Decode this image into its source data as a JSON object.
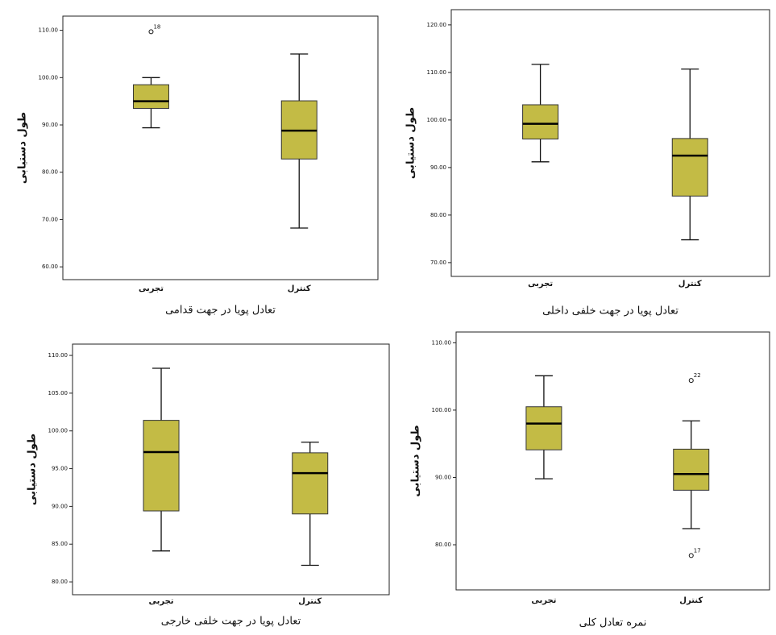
{
  "chart_data": [
    {
      "type": "box",
      "categories": [
        "تجربی",
        "کنترل"
      ],
      "x_label": "تعادل پویا در جهت قدامی",
      "y_label": "طول دستیابی",
      "ylim": [
        57.3,
        113
      ],
      "yticks": [
        {
          "value": 60,
          "label": "60.00"
        },
        {
          "value": 70,
          "label": "70.00"
        },
        {
          "value": 80,
          "label": "80.00"
        },
        {
          "value": 90,
          "label": "90.00"
        },
        {
          "value": 100,
          "label": "100.00"
        },
        {
          "value": 110,
          "label": "110.00"
        }
      ],
      "color": "#c3bb45",
      "boxes": [
        {
          "whislo": 89.4,
          "q1": 93.5,
          "med": 95,
          "q3": 98.5,
          "whishi": 100,
          "outliers": [
            {
              "value": 109.7,
              "case": "18"
            }
          ]
        },
        {
          "whislo": 68.2,
          "q1": 82.8,
          "med": 88.8,
          "q3": 95.1,
          "whishi": 105,
          "outliers": []
        }
      ]
    },
    {
      "type": "box",
      "categories": [
        "تجربی",
        "کنترل"
      ],
      "x_label": "تعادل پویا در جهت خلفی داخلی",
      "y_label": "طول دستیابی",
      "ylim": [
        67.1,
        123.2
      ],
      "yticks": [
        {
          "value": 70,
          "label": "70.00"
        },
        {
          "value": 80,
          "label": "80.00"
        },
        {
          "value": 90,
          "label": "90.00"
        },
        {
          "value": 100,
          "label": "100.00"
        },
        {
          "value": 110,
          "label": "110.00"
        },
        {
          "value": 120,
          "label": "120.00"
        }
      ],
      "color": "#c3bb45",
      "boxes": [
        {
          "whislo": 91.2,
          "q1": 96,
          "med": 99.2,
          "q3": 103.2,
          "whishi": 111.7,
          "outliers": []
        },
        {
          "whislo": 74.8,
          "q1": 84,
          "med": 92.5,
          "q3": 96.1,
          "whishi": 110.7,
          "outliers": []
        }
      ]
    },
    {
      "type": "box",
      "categories": [
        "تجربی",
        "کنترل"
      ],
      "x_label": "تعادل پویا در جهت خلفی خارجی",
      "y_label": "طول دستیابی",
      "ylim": [
        78.3,
        111.5
      ],
      "yticks": [
        {
          "value": 80,
          "label": "80.00"
        },
        {
          "value": 85,
          "label": "85.00"
        },
        {
          "value": 90,
          "label": "90.00"
        },
        {
          "value": 95,
          "label": "95.00"
        },
        {
          "value": 100,
          "label": "100.00"
        },
        {
          "value": 105,
          "label": "105.00"
        },
        {
          "value": 110,
          "label": "110.00"
        }
      ],
      "color": "#c3bb45",
      "boxes": [
        {
          "whislo": 84.1,
          "q1": 89.4,
          "med": 97.2,
          "q3": 101.4,
          "whishi": 108.3,
          "outliers": []
        },
        {
          "whislo": 82.2,
          "q1": 89,
          "med": 94.4,
          "q3": 97.1,
          "whishi": 98.5,
          "outliers": []
        }
      ]
    },
    {
      "type": "box",
      "categories": [
        "تجربی",
        "کنترل"
      ],
      "x_label": "نمره تعادل کلی",
      "y_label": "طول دستیابی",
      "ylim": [
        73.3,
        111.6
      ],
      "yticks": [
        {
          "value": 80,
          "label": "80.00"
        },
        {
          "value": 90,
          "label": "90.00"
        },
        {
          "value": 100,
          "label": "100.00"
        },
        {
          "value": 110,
          "label": "110.00"
        }
      ],
      "color": "#c3bb45",
      "boxes": [
        {
          "whislo": 89.8,
          "q1": 94.1,
          "med": 98,
          "q3": 100.5,
          "whishi": 105.1,
          "outliers": []
        },
        {
          "whislo": 82.4,
          "q1": 88.1,
          "med": 90.5,
          "q3": 94.2,
          "whishi": 98.4,
          "outliers": [
            {
              "value": 104.4,
              "case": "22"
            },
            {
              "value": 78.4,
              "case": "17"
            }
          ]
        }
      ]
    }
  ]
}
